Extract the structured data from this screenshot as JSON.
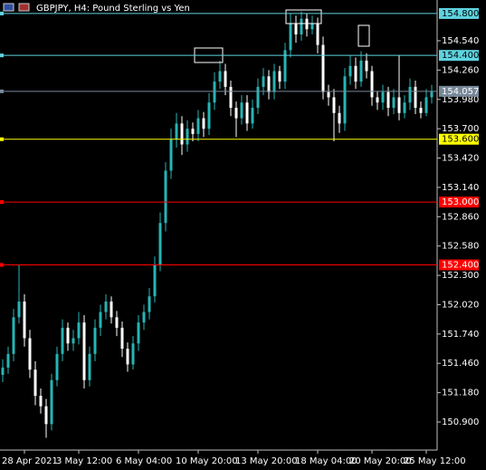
{
  "chart_data": {
    "type": "candlestick",
    "title": "GBPJPY, H4:  Pound Sterling vs Yen",
    "up_color": "#26b5b5",
    "down_color": "#ffffff",
    "ylim": [
      150.632,
      154.929
    ],
    "yticks": [
      {
        "value": 154.54,
        "label": "154.540"
      },
      {
        "value": 154.26,
        "label": "154.260"
      },
      {
        "value": 153.98,
        "label": "153.980"
      },
      {
        "value": 153.7,
        "label": "153.700"
      },
      {
        "value": 153.42,
        "label": "153.420"
      },
      {
        "value": 153.14,
        "label": "153.140"
      },
      {
        "value": 152.86,
        "label": "152.860"
      },
      {
        "value": 152.58,
        "label": "152.580"
      },
      {
        "value": 152.3,
        "label": "152.300"
      },
      {
        "value": 152.02,
        "label": "152.020"
      },
      {
        "value": 151.74,
        "label": "151.740"
      },
      {
        "value": 151.46,
        "label": "151.460"
      },
      {
        "value": 151.18,
        "label": "151.180"
      },
      {
        "value": 150.9,
        "label": "150.900"
      }
    ],
    "xticks": [
      {
        "value": 4,
        "label": "28 Apr 2021"
      },
      {
        "value": 14,
        "label": "3 May 12:00"
      },
      {
        "value": 25,
        "label": "6 May 04:00"
      },
      {
        "value": 36,
        "label": "10 May 20:00"
      },
      {
        "value": 47,
        "label": "13 May 20:00"
      },
      {
        "value": 58,
        "label": "18 May 04:00"
      },
      {
        "value": 68,
        "label": "20 May 20:00"
      },
      {
        "value": 78,
        "label": "25 May 12:00"
      }
    ],
    "levels": [
      {
        "value": 154.8,
        "label": "154.800",
        "color": "#5fd3e0"
      },
      {
        "value": 154.4,
        "label": "154.400",
        "color": "#5fd3e0"
      },
      {
        "value": 154.057,
        "label": "154.057",
        "color": "#778899"
      },
      {
        "value": 153.6,
        "label": "153.600",
        "color": "#ffff00"
      },
      {
        "value": 153.0,
        "label": "153.000",
        "color": "#ff0000"
      },
      {
        "value": 152.4,
        "label": "152.400",
        "color": "#ff0000"
      }
    ],
    "open": [
      151.35,
      151.42,
      151.55,
      151.9,
      152.05,
      151.7,
      151.4,
      151.15,
      151.05,
      150.88,
      151.3,
      151.55,
      151.8,
      151.65,
      151.7,
      151.85,
      151.3,
      151.55,
      151.8,
      151.95,
      152.05,
      151.9,
      151.8,
      151.6,
      151.45,
      151.65,
      151.85,
      151.95,
      152.1,
      152.4,
      152.8,
      153.3,
      153.6,
      153.75,
      153.55,
      153.7,
      153.65,
      153.8,
      153.7,
      153.95,
      154.15,
      154.25,
      154.1,
      153.9,
      153.8,
      153.95,
      153.75,
      153.9,
      154.1,
      154.2,
      154.05,
      154.25,
      154.15,
      154.45,
      154.7,
      154.6,
      154.75,
      154.65,
      154.7,
      154.5,
      154.05,
      154.0,
      153.85,
      153.75,
      154.2,
      154.3,
      154.15,
      154.35,
      154.25,
      154.0,
      153.95,
      154.05,
      153.9,
      154.0,
      153.85,
      153.95,
      154.1,
      153.9,
      153.85,
      154.0
    ],
    "high": [
      151.5,
      151.62,
      151.98,
      152.4,
      152.12,
      151.78,
      151.48,
      151.22,
      151.12,
      151.36,
      151.62,
      151.88,
      151.85,
      151.78,
      151.95,
      151.92,
      151.62,
      151.88,
      152.02,
      152.12,
      152.1,
      151.96,
      151.86,
      151.66,
      151.72,
      151.92,
      152.02,
      152.18,
      152.48,
      152.9,
      153.38,
      153.7,
      153.85,
      153.82,
      153.78,
      153.76,
      153.88,
      153.86,
      154.04,
      154.24,
      154.35,
      154.32,
      154.16,
      153.96,
      154.02,
      154.02,
      153.98,
      154.18,
      154.28,
      154.26,
      154.32,
      154.3,
      154.52,
      154.8,
      154.78,
      154.82,
      154.8,
      154.78,
      154.76,
      154.58,
      154.12,
      154.08,
      153.92,
      154.28,
      154.4,
      154.38,
      154.44,
      154.42,
      154.3,
      154.06,
      154.12,
      154.1,
      154.08,
      154.4,
      154.02,
      154.18,
      154.16,
      153.96,
      154.08,
      154.12
    ],
    "low": [
      151.28,
      151.36,
      151.48,
      151.84,
      151.62,
      151.32,
      151.06,
      150.98,
      150.75,
      150.82,
      151.24,
      151.48,
      151.58,
      151.58,
      151.64,
      151.22,
      151.24,
      151.48,
      151.72,
      151.88,
      151.84,
      151.72,
      151.52,
      151.38,
      151.4,
      151.58,
      151.78,
      151.88,
      152.04,
      152.34,
      152.72,
      153.22,
      153.52,
      153.45,
      153.48,
      153.58,
      153.58,
      153.62,
      153.64,
      153.88,
      154.08,
      154.02,
      153.82,
      153.62,
      153.74,
      153.68,
      153.7,
      153.84,
      154.02,
      153.98,
      153.98,
      154.08,
      154.08,
      154.38,
      154.52,
      154.54,
      154.58,
      154.6,
      154.42,
      153.98,
      153.92,
      153.58,
      153.66,
      153.68,
      154.12,
      154.08,
      154.1,
      154.18,
      153.92,
      153.88,
      153.88,
      153.82,
      153.84,
      153.78,
      153.8,
      153.88,
      153.84,
      153.8,
      153.82,
      153.94
    ],
    "close": [
      151.42,
      151.55,
      151.9,
      152.05,
      151.7,
      151.4,
      151.15,
      151.05,
      150.88,
      151.3,
      151.55,
      151.8,
      151.65,
      151.7,
      151.85,
      151.3,
      151.55,
      151.8,
      151.95,
      152.05,
      151.9,
      151.8,
      151.6,
      151.45,
      151.65,
      151.85,
      151.95,
      152.1,
      152.4,
      152.8,
      153.3,
      153.6,
      153.75,
      153.55,
      153.7,
      153.65,
      153.8,
      153.7,
      153.95,
      154.15,
      154.25,
      154.1,
      153.9,
      153.8,
      153.95,
      153.75,
      153.9,
      154.1,
      154.2,
      154.05,
      154.25,
      154.15,
      154.45,
      154.7,
      154.6,
      154.75,
      154.65,
      154.7,
      154.5,
      154.05,
      154.0,
      153.85,
      153.75,
      154.2,
      154.3,
      154.15,
      154.35,
      154.25,
      154.0,
      153.95,
      154.05,
      153.9,
      154.0,
      153.85,
      153.95,
      154.1,
      153.9,
      153.85,
      154.0,
      154.057
    ]
  }
}
